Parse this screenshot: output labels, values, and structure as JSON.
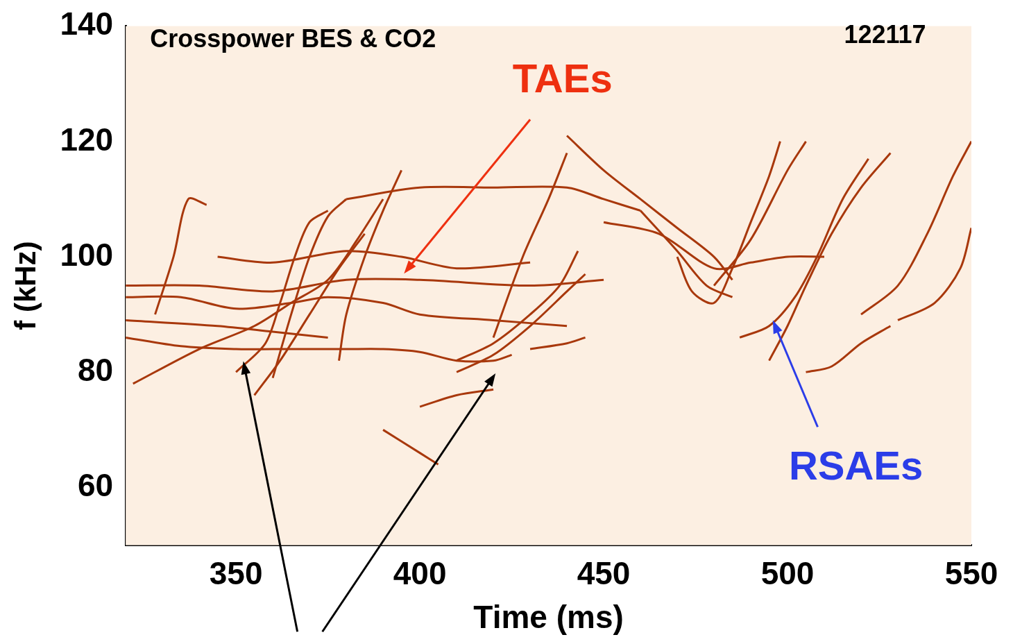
{
  "chart_data": {
    "type": "line",
    "title": "Crosspower BES & CO2",
    "x_label": "Time (ms)",
    "y_label": "f (kHz)",
    "xlim": [
      320,
      550
    ],
    "ylim": [
      50,
      140
    ],
    "xticks": [
      350,
      400,
      450,
      500,
      550
    ],
    "yticks": [
      60,
      80,
      100,
      120,
      140
    ],
    "grid": false,
    "color": "#a8380c",
    "series": [
      {
        "x": [
          320,
          335,
          350,
          360,
          370,
          380,
          390,
          400,
          410,
          420,
          425
        ],
        "values": [
          86,
          84.5,
          84,
          84,
          84,
          84,
          84,
          83.5,
          82,
          82,
          83
        ]
      },
      {
        "x": [
          320,
          335,
          350,
          365,
          375,
          390,
          400,
          420,
          440
        ],
        "values": [
          93,
          93,
          91,
          92,
          93,
          92,
          90,
          89,
          88
        ]
      },
      {
        "x": [
          320,
          340,
          360,
          380,
          400,
          430,
          450
        ],
        "values": [
          95,
          95,
          94,
          96,
          96,
          95,
          96
        ]
      },
      {
        "x": [
          320,
          345,
          360,
          375
        ],
        "values": [
          89,
          88,
          87,
          86
        ]
      },
      {
        "x": [
          345,
          360,
          380,
          395,
          410,
          430
        ],
        "values": [
          100,
          99,
          101,
          100,
          98,
          99
        ]
      },
      {
        "x": [
          380,
          400,
          420,
          440,
          450,
          460
        ],
        "values": [
          110,
          112,
          112,
          112,
          110,
          108
        ]
      },
      {
        "x": [
          322,
          340,
          355,
          365,
          375,
          383,
          390
        ],
        "values": [
          78,
          84,
          88,
          92,
          96,
          103,
          110
        ]
      },
      {
        "x": [
          328,
          333,
          337,
          342
        ],
        "values": [
          90,
          100,
          110,
          109
        ]
      },
      {
        "x": [
          350,
          358,
          362,
          366,
          370,
          375
        ],
        "values": [
          80,
          85,
          92,
          100,
          106,
          108
        ]
      },
      {
        "x": [
          360,
          365,
          370,
          375,
          380
        ],
        "values": [
          79,
          90,
          100,
          107,
          110
        ]
      },
      {
        "x": [
          355,
          362,
          370,
          378,
          385
        ],
        "values": [
          76,
          82,
          90,
          98,
          104
        ]
      },
      {
        "x": [
          378,
          380,
          385,
          390,
          395
        ],
        "values": [
          82,
          90,
          100,
          108,
          115
        ]
      },
      {
        "x": [
          410,
          420,
          430,
          438,
          443
        ],
        "values": [
          82,
          85,
          90,
          95,
          101
        ]
      },
      {
        "x": [
          410,
          420,
          430,
          440,
          445
        ],
        "values": [
          80,
          83,
          88,
          94,
          97
        ]
      },
      {
        "x": [
          420,
          428,
          435,
          440
        ],
        "values": [
          86,
          100,
          110,
          118
        ]
      },
      {
        "x": [
          440,
          450,
          460,
          470,
          480,
          485
        ],
        "values": [
          121,
          115,
          110,
          105,
          100,
          96
        ]
      },
      {
        "x": [
          460,
          470,
          478,
          485
        ],
        "values": [
          108,
          101,
          95,
          93
        ]
      },
      {
        "x": [
          480,
          490,
          500,
          505
        ],
        "values": [
          95,
          103,
          115,
          120
        ]
      },
      {
        "x": [
          487,
          495,
          502,
          508,
          515,
          522
        ],
        "values": [
          86,
          88,
          93,
          100,
          110,
          117
        ]
      },
      {
        "x": [
          495,
          500,
          505,
          512,
          520,
          528
        ],
        "values": [
          82,
          88,
          95,
          104,
          112,
          118
        ]
      },
      {
        "x": [
          505,
          512,
          520,
          528
        ],
        "values": [
          80,
          81,
          85,
          88
        ]
      },
      {
        "x": [
          530,
          540,
          547,
          550
        ],
        "values": [
          89,
          92,
          98,
          105
        ]
      },
      {
        "x": [
          520,
          530,
          538,
          545,
          550
        ],
        "values": [
          90,
          95,
          104,
          114,
          120
        ]
      },
      {
        "x": [
          470,
          474,
          480,
          485,
          490,
          495,
          498
        ],
        "values": [
          100,
          94,
          92,
          98,
          106,
          114,
          120
        ]
      },
      {
        "x": [
          450,
          465,
          480,
          490,
          500,
          510
        ],
        "values": [
          106,
          104,
          98,
          99,
          100,
          100
        ]
      },
      {
        "x": [
          400,
          410,
          420
        ],
        "values": [
          74,
          76,
          77
        ]
      },
      {
        "x": [
          390,
          400,
          405
        ],
        "values": [
          70,
          66,
          64
        ]
      },
      {
        "x": [
          430,
          440,
          445
        ],
        "values": [
          84,
          85,
          86
        ]
      }
    ],
    "annotations": [
      {
        "text": "122117",
        "color": "#000000",
        "x": 526.5,
        "y": 138.2
      },
      {
        "text": "TAEs",
        "color": "#ee3010",
        "x": 438.8,
        "y": 130.4,
        "from": [
          430,
          123.8
        ],
        "to": [
          395.7,
          97.1
        ]
      },
      {
        "text": "RSAEs",
        "color": "#2b3de8",
        "x": 518.6,
        "y": 63.3,
        "from": [
          508.2,
          70.5
        ],
        "to": [
          496,
          89
        ]
      },
      {
        "color": "#000000",
        "from": [
          366.7,
          35
        ],
        "to": [
          352,
          81.9
        ]
      },
      {
        "color": "#000000",
        "from": [
          373.5,
          35
        ],
        "to": [
          420.6,
          79.8
        ]
      }
    ]
  }
}
